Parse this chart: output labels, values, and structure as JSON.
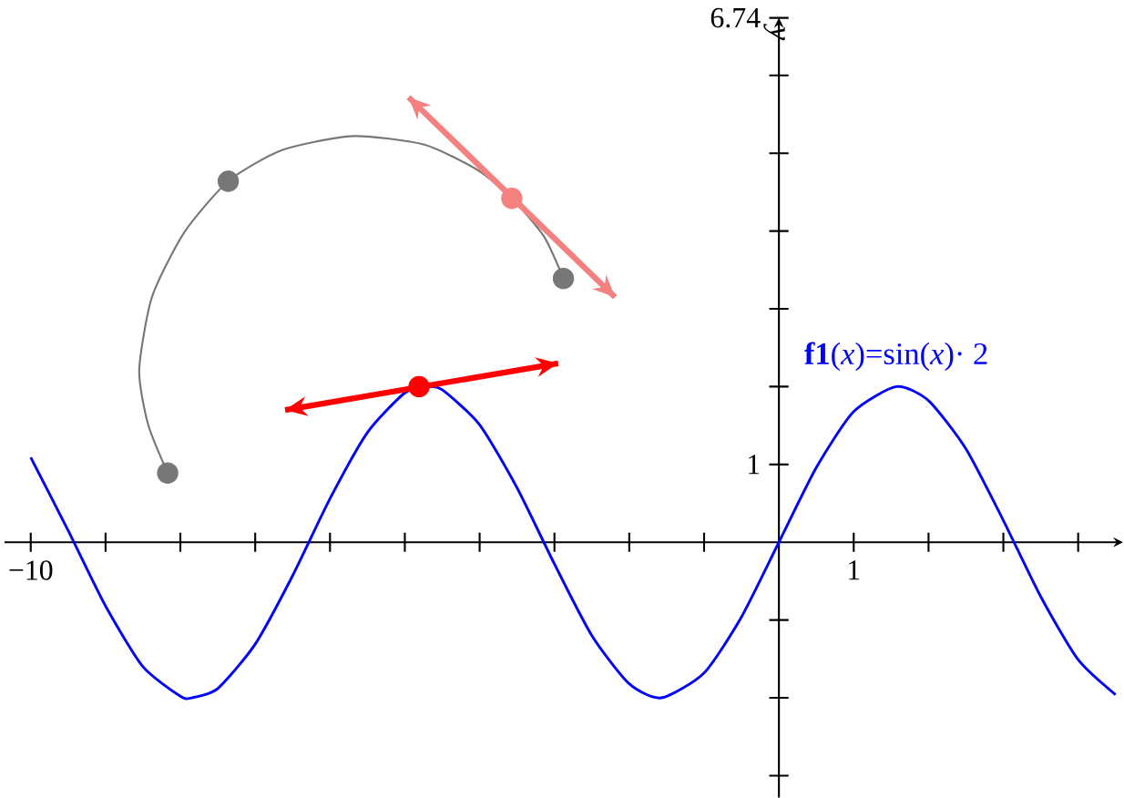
{
  "chart_data": {
    "type": "line",
    "ylabel": "y",
    "xlim": [
      -10.35,
      4.6
    ],
    "ylim": [
      -3.28,
      6.74
    ],
    "xticks": [
      {
        "value": -10,
        "label": "−10"
      },
      {
        "value": -9,
        "label": null
      },
      {
        "value": -8,
        "label": null
      },
      {
        "value": -7,
        "label": null
      },
      {
        "value": -6,
        "label": null
      },
      {
        "value": -5,
        "label": null
      },
      {
        "value": -4,
        "label": null
      },
      {
        "value": -3,
        "label": null
      },
      {
        "value": -2,
        "label": null
      },
      {
        "value": -1,
        "label": null
      },
      1,
      {
        "value": 2,
        "label": null
      },
      {
        "value": 3,
        "label": null
      },
      {
        "value": 4,
        "label": null
      }
    ],
    "yticks": [
      {
        "value": -3,
        "label": null
      },
      {
        "value": -2,
        "label": null
      },
      {
        "value": -1,
        "label": null
      },
      1,
      {
        "value": 2,
        "label": null
      },
      {
        "value": 3,
        "label": null
      },
      {
        "value": 4,
        "label": null
      },
      {
        "value": 5,
        "label": null
      },
      {
        "value": 6,
        "label": null
      },
      {
        "value": 6.74,
        "label": "6.74"
      }
    ],
    "grid": false,
    "series": [
      {
        "name": "**f1**(*x*)=sin(*x*)· 2",
        "color": "#0000ff",
        "x": [
          -10,
          -9.5,
          -9,
          -8.5,
          -8,
          -7.85,
          -7.5,
          -7,
          -6.5,
          -6,
          -5.5,
          -5,
          -4.71,
          -4.5,
          -4,
          -3.5,
          -3,
          -2.5,
          -2,
          -1.57,
          -1,
          -0.5,
          0,
          0.5,
          1,
          1.57,
          2,
          2.5,
          3,
          3.5,
          4,
          4.5
        ],
        "values": [
          1.09,
          0.15,
          -0.82,
          -1.6,
          -1.98,
          -2,
          -1.88,
          -1.31,
          -0.43,
          0.56,
          1.41,
          1.92,
          2,
          1.96,
          1.51,
          0.7,
          -0.28,
          -1.2,
          -1.82,
          -2,
          -1.68,
          -0.96,
          0,
          0.96,
          1.68,
          2,
          1.82,
          1.2,
          0.28,
          -0.7,
          -1.51,
          -1.96
        ]
      },
      {
        "type": "line",
        "color": "#777777",
        "x": [
          -8.17,
          -8.43,
          -8.55,
          -8.38,
          -7.95,
          -7.36,
          -6.64,
          -5.69,
          -4.74,
          -4.02,
          -3.57,
          -3.14,
          -2.88
        ],
        "values": [
          0.89,
          1.51,
          2.21,
          3.15,
          3.98,
          4.64,
          5.04,
          5.22,
          5.11,
          4.78,
          4.42,
          3.93,
          3.39
        ]
      },
      {
        "type": "line",
        "color": "#ff0000",
        "x": [
          -6.6,
          -2.95
        ],
        "values": [
          1.7,
          2.3
        ]
      },
      {
        "type": "line",
        "color": "#f48080",
        "x": [
          -4.95,
          -2.19
        ],
        "values": [
          5.72,
          3.15
        ]
      },
      {
        "type": "scatter",
        "marker": "circle",
        "color": "#777777",
        "x": [
          -8.17,
          -7.36,
          -2.88
        ],
        "values": [
          0.89,
          4.64,
          3.39
        ]
      },
      {
        "type": "scatter",
        "marker": "circle",
        "color": "#f48080",
        "x": [
          -3.57
        ],
        "values": [
          4.42
        ]
      },
      {
        "type": "scatter",
        "marker": "circle",
        "color": "#ff0000",
        "x": [
          -4.81
        ],
        "values": [
          2.0
        ]
      }
    ]
  }
}
